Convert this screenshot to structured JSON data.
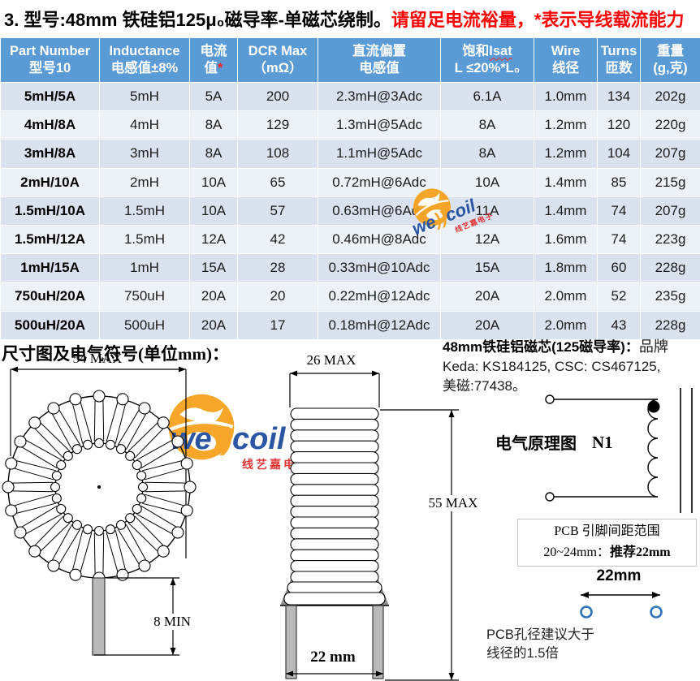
{
  "title": {
    "main": "3. 型号:48mm 铁硅铝125μ₀磁导率-单磁芯绕制。",
    "warning": "请留足电流裕量，*表示导线载流能力"
  },
  "table": {
    "headers": [
      {
        "line1": "Part Number",
        "line2": "型号10"
      },
      {
        "line1": "Inductance",
        "line2": "电感值±8%"
      },
      {
        "line1": "电流",
        "line2": "值",
        "note": "*"
      },
      {
        "line1": "DCR Max",
        "line2": "（mΩ）"
      },
      {
        "line1": "直流偏置",
        "line2": "电感值"
      },
      {
        "line1a": "饱和",
        "line1b": "Isat",
        "line2": "L ≤20%*L₀"
      },
      {
        "line1": "Wire",
        "line2": "线径"
      },
      {
        "line1": "Turns",
        "line2": "匝数"
      },
      {
        "line1": "重量",
        "line2": "(g,克)"
      }
    ],
    "rows": [
      [
        "5mH/5A",
        "5mH",
        "5A",
        "200",
        "2.3mH@3Adc",
        "6.1A",
        "1.0mm",
        "134",
        "202g"
      ],
      [
        "4mH/8A",
        "4mH",
        "8A",
        "129",
        "1.3mH@5Adc",
        "8A",
        "1.2mm",
        "120",
        "220g"
      ],
      [
        "3mH/8A",
        "3mH",
        "8A",
        "108",
        "1.1mH@5Adc",
        "8A",
        "1.2mm",
        "104",
        "207g"
      ],
      [
        "2mH/10A",
        "2mH",
        "10A",
        "65",
        "0.72mH@6Adc",
        "10A",
        "1.4mm",
        "85",
        "215g"
      ],
      [
        "1.5mH/10A",
        "1.5mH",
        "10A",
        "57",
        "0.63mH@6Adc",
        "11A",
        "1.4mm",
        "74",
        "207g"
      ],
      [
        "1.5mH/12A",
        "1.5mH",
        "12A",
        "42",
        "0.46mH@8Adc",
        "12A",
        "1.6mm",
        "74",
        "223g"
      ],
      [
        "1mH/15A",
        "1mH",
        "15A",
        "28",
        "0.33mH@10Adc",
        "15A",
        "1.8mm",
        "60",
        "228g"
      ],
      [
        "750uH/20A",
        "750uH",
        "20A",
        "20",
        "0.22mH@12Adc",
        "20A",
        "2.0mm",
        "52",
        "235g"
      ],
      [
        "500uH/20A",
        "500uH",
        "20A",
        "17",
        "0.18mH@12Adc",
        "20A",
        "2.0mm",
        "43",
        "228g"
      ]
    ],
    "colors": {
      "header_bg": "#5B9BD5",
      "row_odd": "#dbe2ef",
      "row_even": "#edf1f8",
      "asterisk": "#ff2020"
    }
  },
  "dimensions": {
    "section_title": "尺寸图及电气符号(单位mm)：",
    "front_width": "54 MAX",
    "pin_length": "8 MIN",
    "side_width": "26 MAX",
    "side_height": "55 MAX",
    "pin_pitch": "22 mm"
  },
  "core_info": {
    "title_bold": "48mm铁硅铝磁芯(125磁导率)：",
    "title_normal": "品牌",
    "line2": "Keda: KS184125, CSC: CS467125,",
    "line3": "美磁:77438。"
  },
  "schematic": {
    "label": "电气原理图",
    "winding": "N1"
  },
  "pcb": {
    "box_line1": "PCB 引脚间距范围",
    "box_line2_prefix": "20~24mm：",
    "box_line2_bold": "推荐22mm",
    "pitch_label": "22mm",
    "note_line1": "PCB孔径建议大于",
    "note_line2": "线径的1.5倍",
    "hole_color": "#2E75B6"
  },
  "watermark": {
    "text_we": "we",
    "text_paren": "))",
    "text_coil": "coil",
    "subtitle": "线艺嘉电子",
    "orange": "#F6A21D",
    "blue": "#1F4E9F",
    "red": "#E02B2B"
  }
}
